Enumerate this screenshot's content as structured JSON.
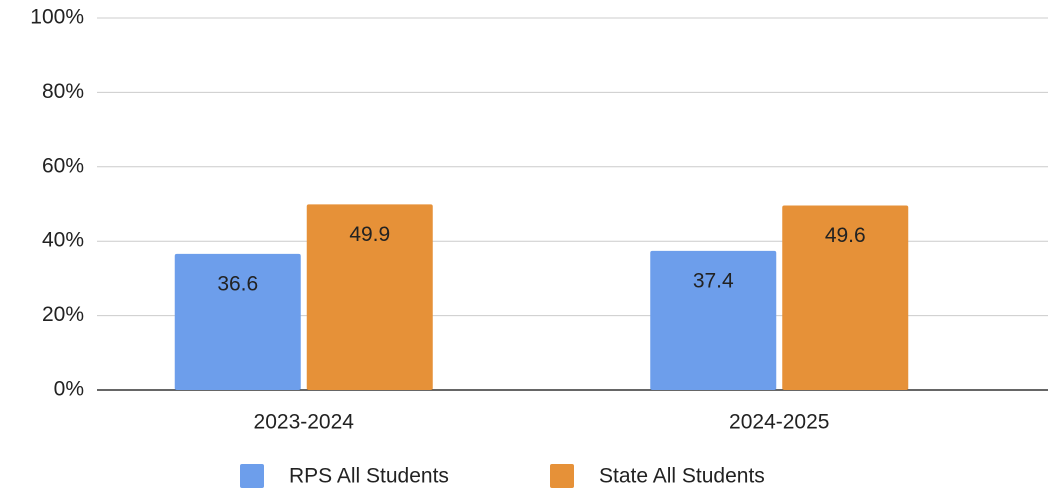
{
  "chart_data": {
    "type": "bar",
    "categories": [
      "2023-2024",
      "2024-2025"
    ],
    "series": [
      {
        "name": "RPS All Students",
        "color": "#6d9eeb",
        "values": [
          36.6,
          37.4
        ]
      },
      {
        "name": "State All Students",
        "color": "#e69138",
        "values": [
          49.9,
          49.6
        ]
      }
    ],
    "ylim": [
      0,
      100
    ],
    "yticks": [
      {
        "value": 0,
        "label": "0%"
      },
      {
        "value": 20,
        "label": "20%"
      },
      {
        "value": 40,
        "label": "40%"
      },
      {
        "value": 60,
        "label": "60%"
      },
      {
        "value": 80,
        "label": "80%"
      },
      {
        "value": 100,
        "label": "100%"
      }
    ],
    "grid": true,
    "legend": "bottom"
  }
}
